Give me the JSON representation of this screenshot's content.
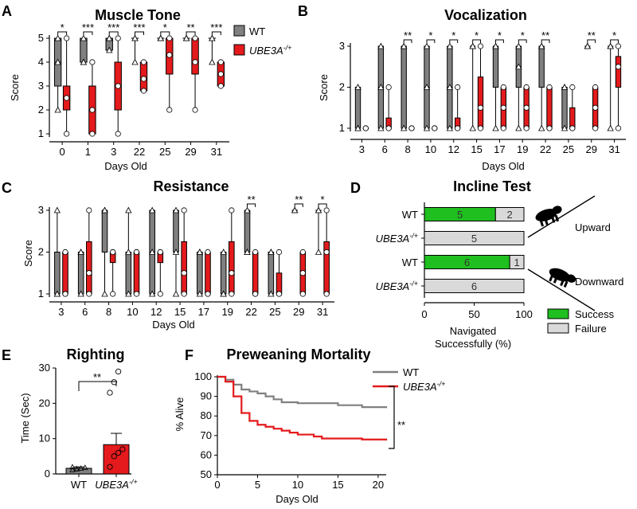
{
  "colors": {
    "wt": "#808080",
    "ube": "#e41a1c",
    "success": "#1fbf1f",
    "failure": "#d9d9d9",
    "axis": "#000000"
  },
  "panels": {
    "A": {
      "letter": "A",
      "title": "Muscle Tone",
      "xlabel": "Days Old",
      "ylabel": "Score"
    },
    "B": {
      "letter": "B",
      "title": "Vocalization",
      "xlabel": "Days Old",
      "ylabel": "Score"
    },
    "C": {
      "letter": "C",
      "title": "Resistance",
      "xlabel": "Days Old",
      "ylabel": "Score"
    },
    "D": {
      "letter": "D",
      "title": "Incline Test",
      "xlabel_line1": "Navigated",
      "xlabel_line2": "Successfully (%)",
      "upward": "Upward",
      "downward": "Downward"
    },
    "E": {
      "letter": "E",
      "title": "Righting",
      "ylabel": "Time (Sec)"
    },
    "F": {
      "letter": "F",
      "title": "Preweaning Mortality",
      "xlabel": "Days Old",
      "ylabel": "% Alive",
      "sig": "**"
    }
  },
  "legends": {
    "A": {
      "wt": "WT",
      "ube": "UBE3A",
      "ube_sup": "-/+"
    },
    "D": {
      "success": "Success",
      "failure": "Failure"
    },
    "F": {
      "wt": "WT",
      "ube": "UBE3A",
      "ube_sup": "-/+"
    }
  },
  "chart_data": [
    {
      "id": "A",
      "type": "box",
      "title": "Muscle Tone",
      "xlabel": "Days Old",
      "ylabel": "Score",
      "ylim": [
        1,
        5
      ],
      "yticks": [
        1,
        2,
        3,
        4,
        5
      ],
      "categories": [
        "0",
        "1",
        "3",
        "22",
        "25",
        "29",
        "31"
      ],
      "series": [
        {
          "name": "WT",
          "boxes": [
            {
              "min": 2,
              "q1": 3,
              "median": 4,
              "q3": 5,
              "max": 5
            },
            {
              "min": 4,
              "q1": 4,
              "median": 4,
              "q3": 5,
              "max": 5
            },
            {
              "min": 4.5,
              "q1": 4.5,
              "median": 5,
              "q3": 5,
              "max": 5
            },
            {
              "min": 4,
              "q1": 5,
              "median": 5,
              "q3": 5,
              "max": 5
            },
            {
              "min": 5,
              "q1": 5,
              "median": 5,
              "q3": 5,
              "max": 5
            },
            {
              "min": 5,
              "q1": 5,
              "median": 5,
              "q3": 5,
              "max": 5
            },
            {
              "min": 4,
              "q1": 5,
              "median": 5,
              "q3": 5,
              "max": 5
            }
          ]
        },
        {
          "name": "UBE3A-/+",
          "boxes": [
            {
              "min": 1,
              "q1": 2,
              "median": 2.5,
              "q3": 3,
              "max": 5
            },
            {
              "min": 1,
              "q1": 1,
              "median": 2,
              "q3": 3,
              "max": 4
            },
            {
              "min": 1,
              "q1": 2,
              "median": 3,
              "q3": 4,
              "max": 5
            },
            {
              "min": 2.8,
              "q1": 2.8,
              "median": 3.3,
              "q3": 4,
              "max": 4
            },
            {
              "min": 2,
              "q1": 3.5,
              "median": 4.3,
              "q3": 5,
              "max": 5
            },
            {
              "min": 2,
              "q1": 3.5,
              "median": 4,
              "q3": 5,
              "max": 5
            },
            {
              "min": 3,
              "q1": 3,
              "median": 3.5,
              "q3": 4,
              "max": 4
            }
          ]
        }
      ],
      "significance": [
        "*",
        "***",
        "***",
        "***",
        "*",
        "**",
        "***"
      ]
    },
    {
      "id": "B",
      "type": "box",
      "title": "Vocalization",
      "xlabel": "Days Old",
      "ylabel": "Score",
      "ylim": [
        1,
        3
      ],
      "yticks": [
        1,
        2,
        3
      ],
      "categories": [
        "3",
        "6",
        "8",
        "10",
        "12",
        "15",
        "17",
        "19",
        "22",
        "25",
        "29",
        "31"
      ],
      "series": [
        {
          "name": "WT",
          "boxes": [
            {
              "min": 1,
              "q1": 1,
              "median": 1,
              "q3": 2,
              "max": 2
            },
            {
              "min": 1,
              "q1": 1,
              "median": 2,
              "q3": 3,
              "max": 3
            },
            {
              "min": 1,
              "q1": 1,
              "median": 3,
              "q3": 3,
              "max": 3
            },
            {
              "min": 1,
              "q1": 1,
              "median": 2,
              "q3": 3,
              "max": 3
            },
            {
              "min": 1,
              "q1": 1,
              "median": 2,
              "q3": 3,
              "max": 3
            },
            {
              "min": 1,
              "q1": 3,
              "median": 3,
              "q3": 3,
              "max": 3
            },
            {
              "min": 1,
              "q1": 2,
              "median": 3,
              "q3": 3,
              "max": 3
            },
            {
              "min": 1,
              "q1": 2,
              "median": 2.5,
              "q3": 3,
              "max": 3
            },
            {
              "min": 1,
              "q1": 2,
              "median": 3,
              "q3": 3,
              "max": 3
            },
            {
              "min": 1,
              "q1": 1,
              "median": 2,
              "q3": 2,
              "max": 2
            },
            {
              "min": 3,
              "q1": 3,
              "median": 3,
              "q3": 3,
              "max": 3
            },
            {
              "min": 1,
              "q1": 3,
              "median": 3,
              "q3": 3,
              "max": 3
            }
          ]
        },
        {
          "name": "UBE3A-/+",
          "boxes": [
            {
              "min": 1,
              "q1": 1,
              "median": 1,
              "q3": 1,
              "max": 1
            },
            {
              "min": 1,
              "q1": 1,
              "median": 1,
              "q3": 1.25,
              "max": 2
            },
            {
              "min": 1,
              "q1": 1,
              "median": 1,
              "q3": 1,
              "max": 1
            },
            {
              "min": 1,
              "q1": 1,
              "median": 1,
              "q3": 1,
              "max": 1
            },
            {
              "min": 1,
              "q1": 1,
              "median": 1,
              "q3": 1.25,
              "max": 2
            },
            {
              "min": 1,
              "q1": 1,
              "median": 1.5,
              "q3": 2.25,
              "max": 3
            },
            {
              "min": 1,
              "q1": 1,
              "median": 1.5,
              "q3": 2,
              "max": 2
            },
            {
              "min": 1,
              "q1": 1,
              "median": 1.5,
              "q3": 2,
              "max": 2
            },
            {
              "min": 1,
              "q1": 1,
              "median": 1,
              "q3": 2,
              "max": 2
            },
            {
              "min": 1,
              "q1": 1,
              "median": 1,
              "q3": 1.5,
              "max": 2
            },
            {
              "min": 1,
              "q1": 1,
              "median": 1.5,
              "q3": 2,
              "max": 2
            },
            {
              "min": 1,
              "q1": 2,
              "median": 2.5,
              "q3": 2.75,
              "max": 3
            }
          ]
        }
      ],
      "significance": [
        "",
        "",
        "**",
        "*",
        "*",
        "*",
        "*",
        "*",
        "**",
        "",
        "**",
        "*"
      ]
    },
    {
      "id": "C",
      "type": "box",
      "title": "Resistance",
      "xlabel": "Days Old",
      "ylabel": "Score",
      "ylim": [
        1,
        3
      ],
      "yticks": [
        1,
        2,
        3
      ],
      "categories": [
        "3",
        "6",
        "8",
        "10",
        "12",
        "15",
        "17",
        "19",
        "22",
        "25",
        "29",
        "31"
      ],
      "series": [
        {
          "name": "WT",
          "boxes": [
            {
              "min": 1,
              "q1": 1,
              "median": 1,
              "q3": 2,
              "max": 3
            },
            {
              "min": 1,
              "q1": 1,
              "median": 2,
              "q3": 2,
              "max": 2
            },
            {
              "min": 1,
              "q1": 2,
              "median": 3,
              "q3": 3,
              "max": 3
            },
            {
              "min": 1,
              "q1": 1,
              "median": 2,
              "q3": 2,
              "max": 3
            },
            {
              "min": 1,
              "q1": 1,
              "median": 2,
              "q3": 3,
              "max": 3
            },
            {
              "min": 1,
              "q1": 2,
              "median": 2,
              "q3": 3,
              "max": 3
            },
            {
              "min": 1,
              "q1": 1,
              "median": 2,
              "q3": 2,
              "max": 2
            },
            {
              "min": 1,
              "q1": 1,
              "median": 1,
              "q3": 2,
              "max": 2
            },
            {
              "min": 2,
              "q1": 2,
              "median": 2,
              "q3": 3,
              "max": 3
            },
            {
              "min": 1,
              "q1": 1,
              "median": 2,
              "q3": 2,
              "max": 2
            },
            {
              "min": 3,
              "q1": 3,
              "median": 3,
              "q3": 3,
              "max": 3
            },
            {
              "min": 2,
              "q1": 3,
              "median": 3,
              "q3": 3,
              "max": 3
            }
          ]
        },
        {
          "name": "UBE3A-/+",
          "boxes": [
            {
              "min": 1,
              "q1": 1,
              "median": 1,
              "q3": 2,
              "max": 2
            },
            {
              "min": 1,
              "q1": 1,
              "median": 1.5,
              "q3": 2.25,
              "max": 3
            },
            {
              "min": 1,
              "q1": 1.75,
              "median": 2,
              "q3": 2,
              "max": 2
            },
            {
              "min": 1,
              "q1": 1,
              "median": 2,
              "q3": 2,
              "max": 2
            },
            {
              "min": 1,
              "q1": 1.75,
              "median": 2,
              "q3": 2,
              "max": 2
            },
            {
              "min": 1,
              "q1": 1,
              "median": 1.5,
              "q3": 2.25,
              "max": 3
            },
            {
              "min": 1,
              "q1": 1,
              "median": 1,
              "q3": 2,
              "max": 2
            },
            {
              "min": 1,
              "q1": 1,
              "median": 1.5,
              "q3": 2.25,
              "max": 3
            },
            {
              "min": 1,
              "q1": 1,
              "median": 1,
              "q3": 2,
              "max": 2
            },
            {
              "min": 1,
              "q1": 1,
              "median": 1,
              "q3": 1.5,
              "max": 2
            },
            {
              "min": 1,
              "q1": 1,
              "median": 1.5,
              "q3": 2,
              "max": 2
            },
            {
              "min": 1,
              "q1": 1,
              "median": 2,
              "q3": 2.25,
              "max": 3
            }
          ]
        }
      ],
      "significance": [
        "",
        "",
        "",
        "",
        "",
        "",
        "",
        "",
        "**",
        "",
        "**",
        "*"
      ]
    },
    {
      "id": "D",
      "type": "bar",
      "orientation": "horizontal",
      "stacked": true,
      "title": "Incline Test",
      "xlabel": "Navigated Successfully (%)",
      "xlim": [
        0,
        100
      ],
      "xticks": [
        0,
        50,
        100
      ],
      "rows": [
        {
          "label": "WT",
          "italic": false,
          "direction": "Upward",
          "success": 5,
          "failure": 2
        },
        {
          "label": "UBE3A",
          "sup": "-/+",
          "italic": true,
          "direction": "Upward",
          "success": 0,
          "failure": 5
        },
        {
          "label": "WT",
          "italic": false,
          "direction": "Downward",
          "success": 6,
          "failure": 1
        },
        {
          "label": "UBE3A",
          "sup": "-/+",
          "italic": true,
          "direction": "Downward",
          "success": 0,
          "failure": 6
        }
      ]
    },
    {
      "id": "E",
      "type": "bar",
      "title": "Righting",
      "ylabel": "Time (Sec)",
      "ylim": [
        0,
        30
      ],
      "yticks": [
        0,
        10,
        20,
        30
      ],
      "categories": [
        "WT",
        "UBE3A"
      ],
      "category_sup": [
        "",
        "-/+"
      ],
      "values": [
        1.6,
        8.3
      ],
      "errors": [
        0.4,
        3.2
      ],
      "points": [
        [
          1.2,
          1.4,
          1.6,
          1.8,
          2.0,
          1.5
        ],
        [
          2,
          5,
          6,
          7,
          23,
          26,
          29
        ]
      ],
      "significance": "**"
    },
    {
      "id": "F",
      "type": "line",
      "step": true,
      "title": "Preweaning Mortality",
      "xlabel": "Days Old",
      "ylabel": "% Alive",
      "xlim": [
        0,
        21
      ],
      "ylim": [
        50,
        100
      ],
      "xticks": [
        0,
        5,
        10,
        15,
        20
      ],
      "yticks": [
        50,
        60,
        70,
        80,
        90,
        100
      ],
      "series": [
        {
          "name": "WT",
          "x": [
            0,
            1,
            2,
            3,
            4,
            5,
            6,
            7,
            8,
            10,
            12,
            15,
            18,
            21
          ],
          "y": [
            100,
            98.5,
            96,
            93.5,
            92.5,
            91.5,
            90,
            88.5,
            87,
            86.5,
            86.5,
            85.5,
            84.5,
            84
          ]
        },
        {
          "name": "UBE3A-/+",
          "x": [
            0,
            1,
            2,
            3,
            4,
            5,
            6,
            7,
            8,
            9,
            10,
            12,
            13,
            15,
            18,
            21
          ],
          "y": [
            100,
            97.5,
            90,
            81.5,
            77.5,
            75.5,
            74.5,
            73.5,
            72.5,
            71.5,
            70.5,
            69.5,
            68.5,
            68.5,
            68,
            67.5
          ]
        }
      ],
      "significance": "**"
    }
  ]
}
